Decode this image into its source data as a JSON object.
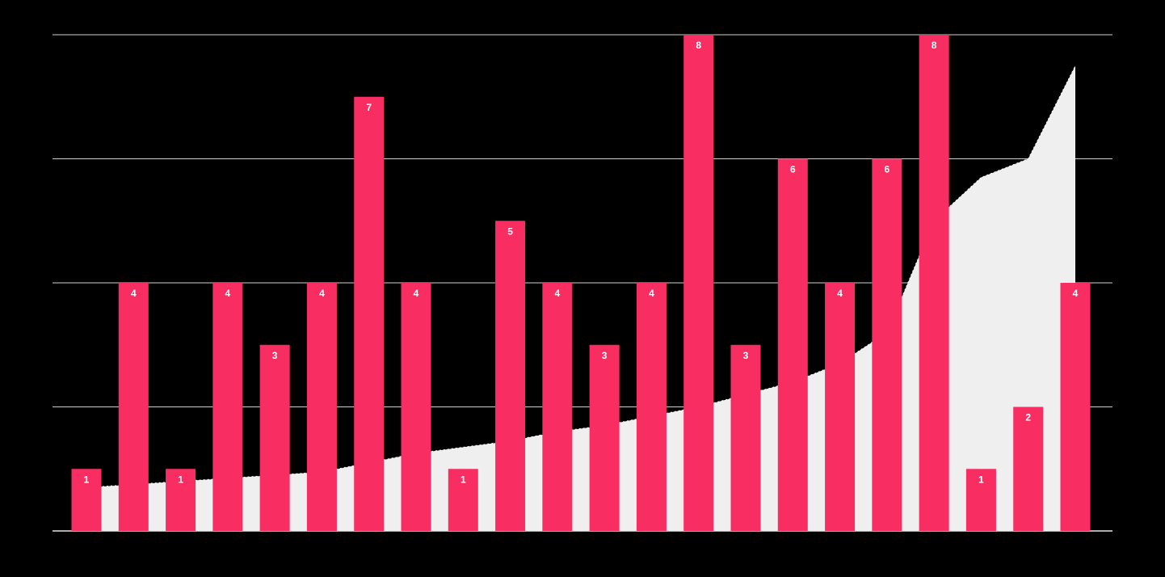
{
  "page": {
    "background": "#000000"
  },
  "colors": {
    "background": "#000000",
    "grid": "#CFCFCF",
    "axis": "#E6E6E6",
    "bar": "#F82E63",
    "area": "#EFEFEF",
    "trend_line": "#FFFFFF",
    "label": "#FFFFFF"
  },
  "chart_data": {
    "type": "bar",
    "title": "",
    "subtitle": "",
    "xlabel": "",
    "ylabel": "",
    "ylim": [
      0,
      8
    ],
    "gridline_values": [
      0,
      2,
      4,
      6,
      8
    ],
    "grid": true,
    "legend": false,
    "x_tick_labels": [],
    "data_labels": true,
    "series": [
      {
        "name": "values",
        "type": "bar",
        "color": "#F82E63",
        "values": [
          1,
          4,
          1,
          4,
          3,
          4,
          7,
          4,
          1,
          5,
          4,
          3,
          4,
          8,
          3,
          6,
          4,
          6,
          8,
          1,
          2,
          4
        ],
        "labels": [
          "1",
          "4",
          "1",
          "4",
          "3",
          "4",
          "7",
          "4",
          "1",
          "5",
          "4",
          "3",
          "4",
          "8",
          "3",
          "6",
          "4",
          "6",
          "8",
          "1",
          "2",
          "4"
        ]
      },
      {
        "name": "trend-area",
        "type": "area",
        "color": "#EFEFEF",
        "outline_style": "dotted",
        "outline_color": "#FFFFFF",
        "values": [
          0.7,
          0.75,
          0.8,
          0.85,
          0.9,
          0.95,
          1.1,
          1.25,
          1.35,
          1.45,
          1.6,
          1.7,
          1.85,
          2.0,
          2.2,
          2.4,
          2.7,
          3.2,
          5.0,
          5.7,
          6.0,
          7.5
        ]
      }
    ]
  }
}
